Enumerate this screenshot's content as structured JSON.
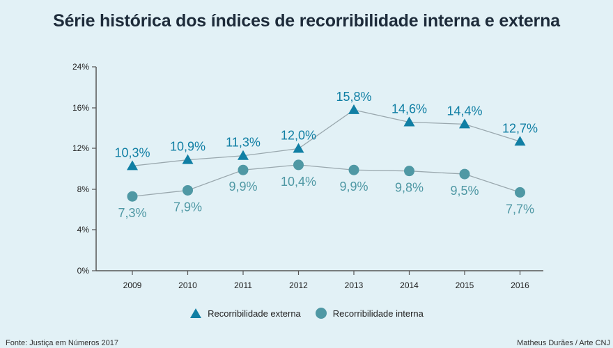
{
  "chart_data": {
    "type": "line",
    "title": "Série histórica dos índices de recorribilidade interna e externa",
    "categories": [
      "2009",
      "2010",
      "2011",
      "2012",
      "2013",
      "2014",
      "2015",
      "2016"
    ],
    "y_ticks": [
      "0%",
      "4%",
      "8%",
      "12%",
      "16%",
      "24%"
    ],
    "ylim": [
      0,
      24
    ],
    "series": [
      {
        "name": "Recorribilidade externa",
        "marker": "triangle",
        "values": [
          10.3,
          10.9,
          11.3,
          12.0,
          15.8,
          14.6,
          14.4,
          12.7
        ],
        "labels": [
          "10,3%",
          "10,9%",
          "11,3%",
          "12,0%",
          "15,8%",
          "14,6%",
          "14,4%",
          "12,7%"
        ]
      },
      {
        "name": "Recorribilidade interna",
        "marker": "circle",
        "values": [
          7.3,
          7.9,
          9.9,
          10.4,
          9.9,
          9.8,
          9.5,
          7.7
        ],
        "labels": [
          "7,3%",
          "7,9%",
          "9,9%",
          "10,4%",
          "9,9%",
          "9,8%",
          "9,5%",
          "7,7%"
        ]
      }
    ],
    "grid": false,
    "legend_position": "bottom"
  },
  "colors": {
    "externa": "#107fa4",
    "interna": "#4f98a4",
    "line": "#9aa8ae",
    "axis": "#555555",
    "background": "#e2f1f6"
  },
  "footer": {
    "source": "Fonte: Justiça em Números 2017",
    "credit": "Matheus Durães / Arte CNJ"
  }
}
